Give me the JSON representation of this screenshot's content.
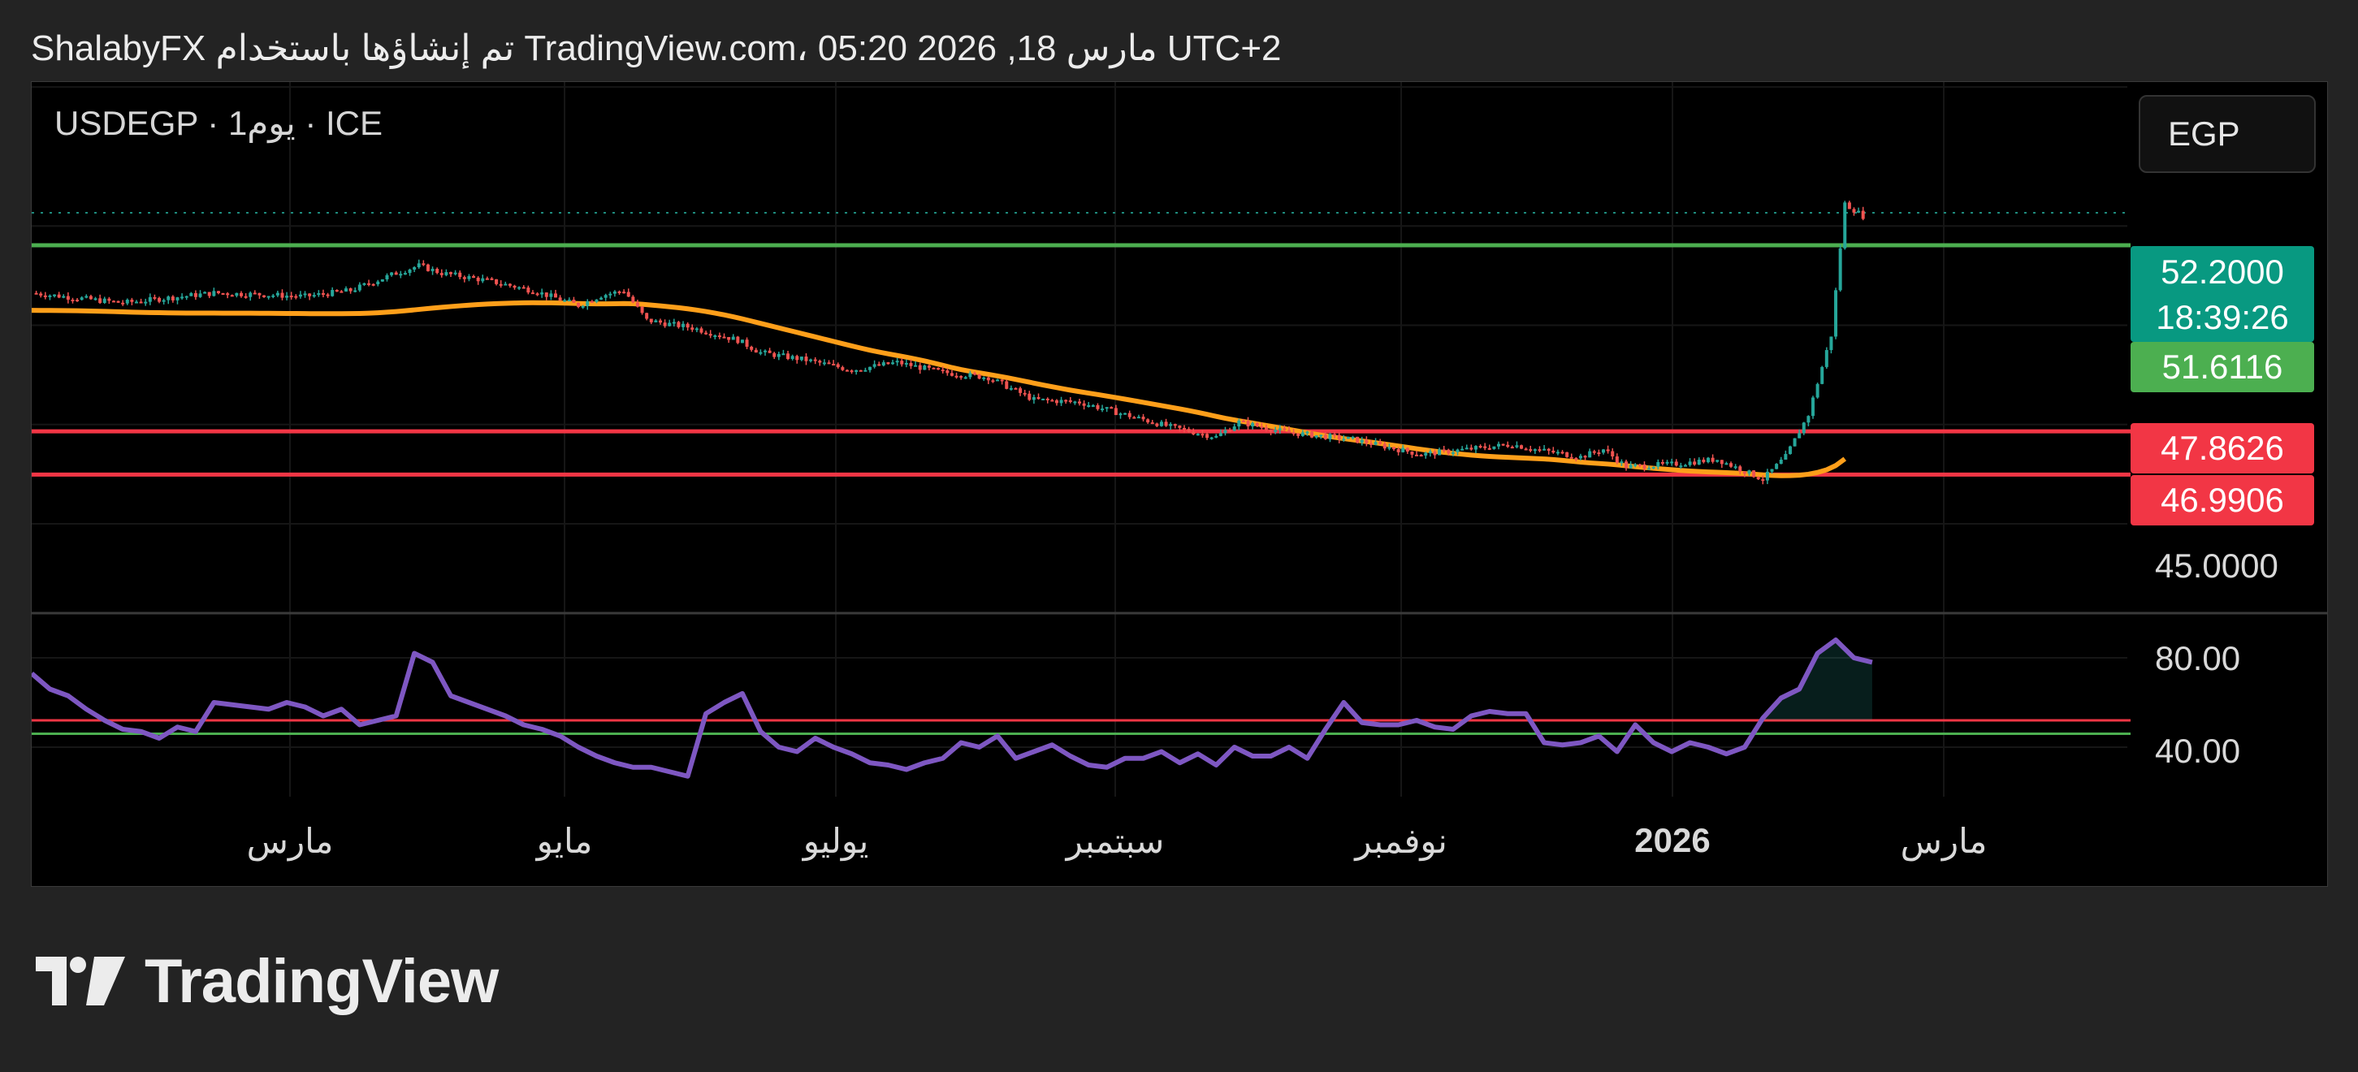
{
  "header": {
    "text": "ShalabyFX تم إنشاؤها باستخدام TradingView.com، 05:20 2026 ,18 مارس UTC+2"
  },
  "chart": {
    "symbol_info": "USDEGP · 1يوم · ICE",
    "currency_button": "EGP",
    "price_tags": {
      "last_price": "52.2000",
      "countdown": "18:39:26",
      "ma_value": "51.6116",
      "resistance_1": "47.8626",
      "resistance_2": "46.9906"
    },
    "price_axis_labels": [
      "45.0000"
    ],
    "rsi_axis_labels": [
      "80.00",
      "40.00"
    ],
    "time_labels": [
      "مارس",
      "مايو",
      "يوليو",
      "سبتمبر",
      "نوفمبر",
      "2026",
      "مارس"
    ]
  },
  "colors": {
    "up": "#26a69a",
    "down": "#ef5350",
    "ma": "#ff9f1a",
    "support_line": "#4caf50",
    "red_line": "#f23645",
    "rsi": "#7e57c2",
    "last_price_tag": "#089981",
    "ma_tag": "#4caf50",
    "red_tag": "#f23645"
  },
  "chart_data": [
    {
      "type": "candlestick",
      "title": "USDEGP · 1يوم · ICE",
      "y_axis_printed_ticks": [
        45.0
      ],
      "x_tick_labels": [
        "مارس",
        "مايو",
        "يوليو",
        "سبتمبر",
        "نوفمبر",
        "2026",
        "مارس"
      ],
      "horizontal_lines": [
        {
          "value": 51.6116,
          "color": "#4caf50"
        },
        {
          "value": 47.8626,
          "color": "#f23645"
        },
        {
          "value": 46.9906,
          "color": "#f23645"
        }
      ],
      "last_price": 52.2,
      "close_series": [
        [
          0,
          50.65
        ],
        [
          10,
          50.55
        ],
        [
          20,
          50.45
        ],
        [
          30,
          50.55
        ],
        [
          40,
          50.65
        ],
        [
          50,
          50.62
        ],
        [
          60,
          50.58
        ],
        [
          70,
          50.7
        ],
        [
          80,
          51.05
        ],
        [
          85,
          51.2
        ],
        [
          90,
          51.05
        ],
        [
          100,
          50.9
        ],
        [
          110,
          50.7
        ],
        [
          120,
          50.4
        ],
        [
          125,
          50.6
        ],
        [
          130,
          50.7
        ],
        [
          135,
          50.1
        ],
        [
          145,
          49.95
        ],
        [
          155,
          49.7
        ],
        [
          160,
          49.45
        ],
        [
          170,
          49.3
        ],
        [
          180,
          49.1
        ],
        [
          190,
          49.25
        ],
        [
          200,
          49.05
        ],
        [
          210,
          48.95
        ],
        [
          220,
          48.5
        ],
        [
          230,
          48.45
        ],
        [
          240,
          48.2
        ],
        [
          250,
          47.95
        ],
        [
          260,
          47.75
        ],
        [
          265,
          48.05
        ],
        [
          270,
          47.95
        ],
        [
          275,
          47.85
        ],
        [
          280,
          47.8
        ],
        [
          290,
          47.7
        ],
        [
          300,
          47.5
        ],
        [
          305,
          47.4
        ],
        [
          310,
          47.45
        ],
        [
          320,
          47.55
        ],
        [
          325,
          47.6
        ],
        [
          330,
          47.5
        ],
        [
          340,
          47.35
        ],
        [
          345,
          47.5
        ],
        [
          350,
          47.15
        ],
        [
          360,
          47.2
        ],
        [
          370,
          47.3
        ],
        [
          380,
          46.9
        ],
        [
          385,
          47.35
        ],
        [
          390,
          48.2
        ],
        [
          395,
          49.8
        ],
        [
          398,
          52.45
        ],
        [
          402,
          52.2
        ]
      ]
    },
    {
      "type": "line",
      "title": "",
      "y_axis_printed_ticks": [
        80,
        40
      ],
      "horizontal_lines": [
        {
          "value": 52,
          "color": "#f23645"
        },
        {
          "value": 46,
          "color": "#4caf50"
        }
      ],
      "series": [
        {
          "x_y": [
            [
              0,
              73
            ],
            [
              4,
              66
            ],
            [
              8,
              63
            ],
            [
              12,
              57
            ],
            [
              16,
              52
            ],
            [
              20,
              48
            ],
            [
              24,
              47
            ],
            [
              28,
              44
            ],
            [
              32,
              49
            ],
            [
              36,
              47
            ],
            [
              40,
              60
            ],
            [
              44,
              59
            ],
            [
              48,
              58
            ],
            [
              52,
              57
            ],
            [
              56,
              60
            ],
            [
              60,
              58
            ],
            [
              64,
              54
            ],
            [
              68,
              57
            ],
            [
              72,
              50
            ],
            [
              76,
              52
            ],
            [
              80,
              54
            ],
            [
              84,
              82
            ],
            [
              88,
              78
            ],
            [
              92,
              63
            ],
            [
              96,
              60
            ],
            [
              100,
              57
            ],
            [
              104,
              54
            ],
            [
              108,
              50
            ],
            [
              112,
              48
            ],
            [
              116,
              45
            ],
            [
              120,
              40
            ],
            [
              124,
              36
            ],
            [
              128,
              33
            ],
            [
              132,
              31
            ],
            [
              136,
              31
            ],
            [
              140,
              29
            ],
            [
              144,
              27
            ],
            [
              148,
              55
            ],
            [
              152,
              60
            ],
            [
              156,
              64
            ],
            [
              160,
              47
            ],
            [
              164,
              40
            ],
            [
              168,
              38
            ],
            [
              172,
              44
            ],
            [
              176,
              40
            ],
            [
              180,
              37
            ],
            [
              184,
              33
            ],
            [
              188,
              32
            ],
            [
              192,
              30
            ],
            [
              196,
              33
            ],
            [
              200,
              35
            ],
            [
              204,
              42
            ],
            [
              208,
              40
            ],
            [
              212,
              45
            ],
            [
              216,
              35
            ],
            [
              220,
              38
            ],
            [
              224,
              41
            ],
            [
              228,
              36
            ],
            [
              232,
              32
            ],
            [
              236,
              31
            ],
            [
              240,
              35
            ],
            [
              244,
              35
            ],
            [
              248,
              38
            ],
            [
              252,
              33
            ],
            [
              256,
              37
            ],
            [
              260,
              32
            ],
            [
              264,
              40
            ],
            [
              268,
              36
            ],
            [
              272,
              36
            ],
            [
              276,
              40
            ],
            [
              280,
              35
            ],
            [
              284,
              48
            ],
            [
              288,
              60
            ],
            [
              292,
              51
            ],
            [
              296,
              50
            ],
            [
              300,
              50
            ],
            [
              304,
              52
            ],
            [
              308,
              49
            ],
            [
              312,
              48
            ],
            [
              316,
              54
            ],
            [
              320,
              56
            ],
            [
              324,
              55
            ],
            [
              328,
              55
            ],
            [
              332,
              42
            ],
            [
              336,
              41
            ],
            [
              340,
              42
            ],
            [
              344,
              45
            ],
            [
              348,
              38
            ],
            [
              352,
              50
            ],
            [
              356,
              42
            ],
            [
              360,
              38
            ],
            [
              364,
              42
            ],
            [
              368,
              40
            ],
            [
              372,
              37
            ],
            [
              376,
              40
            ],
            [
              380,
              53
            ],
            [
              384,
              62
            ],
            [
              388,
              66
            ],
            [
              392,
              82
            ],
            [
              396,
              88
            ],
            [
              400,
              80
            ],
            [
              404,
              78
            ]
          ]
        }
      ]
    }
  ]
}
